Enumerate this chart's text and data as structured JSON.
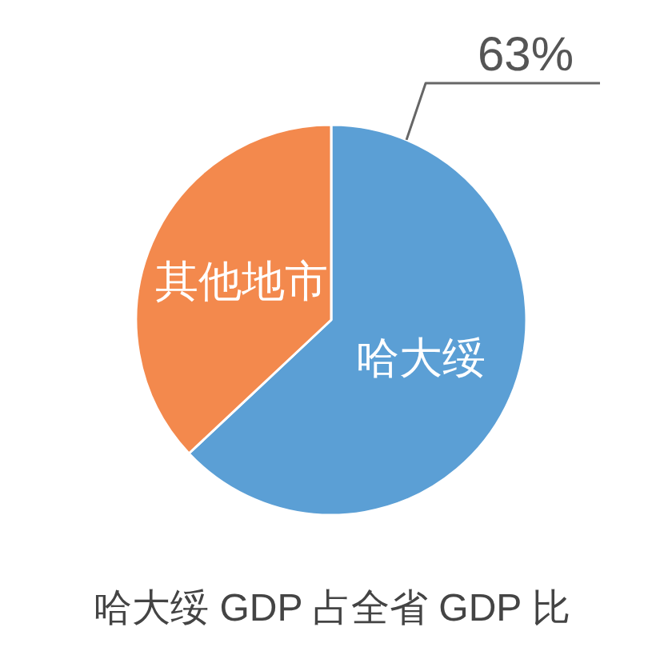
{
  "chart_data": {
    "type": "pie",
    "title": "哈大绥 GDP 占全省 GDP 比",
    "categories": [
      "哈大绥",
      "其他地市"
    ],
    "values": [
      63,
      37
    ],
    "colors": [
      "#5b9fd5",
      "#f3894d"
    ],
    "value_labels": [
      "63%",
      null
    ]
  }
}
